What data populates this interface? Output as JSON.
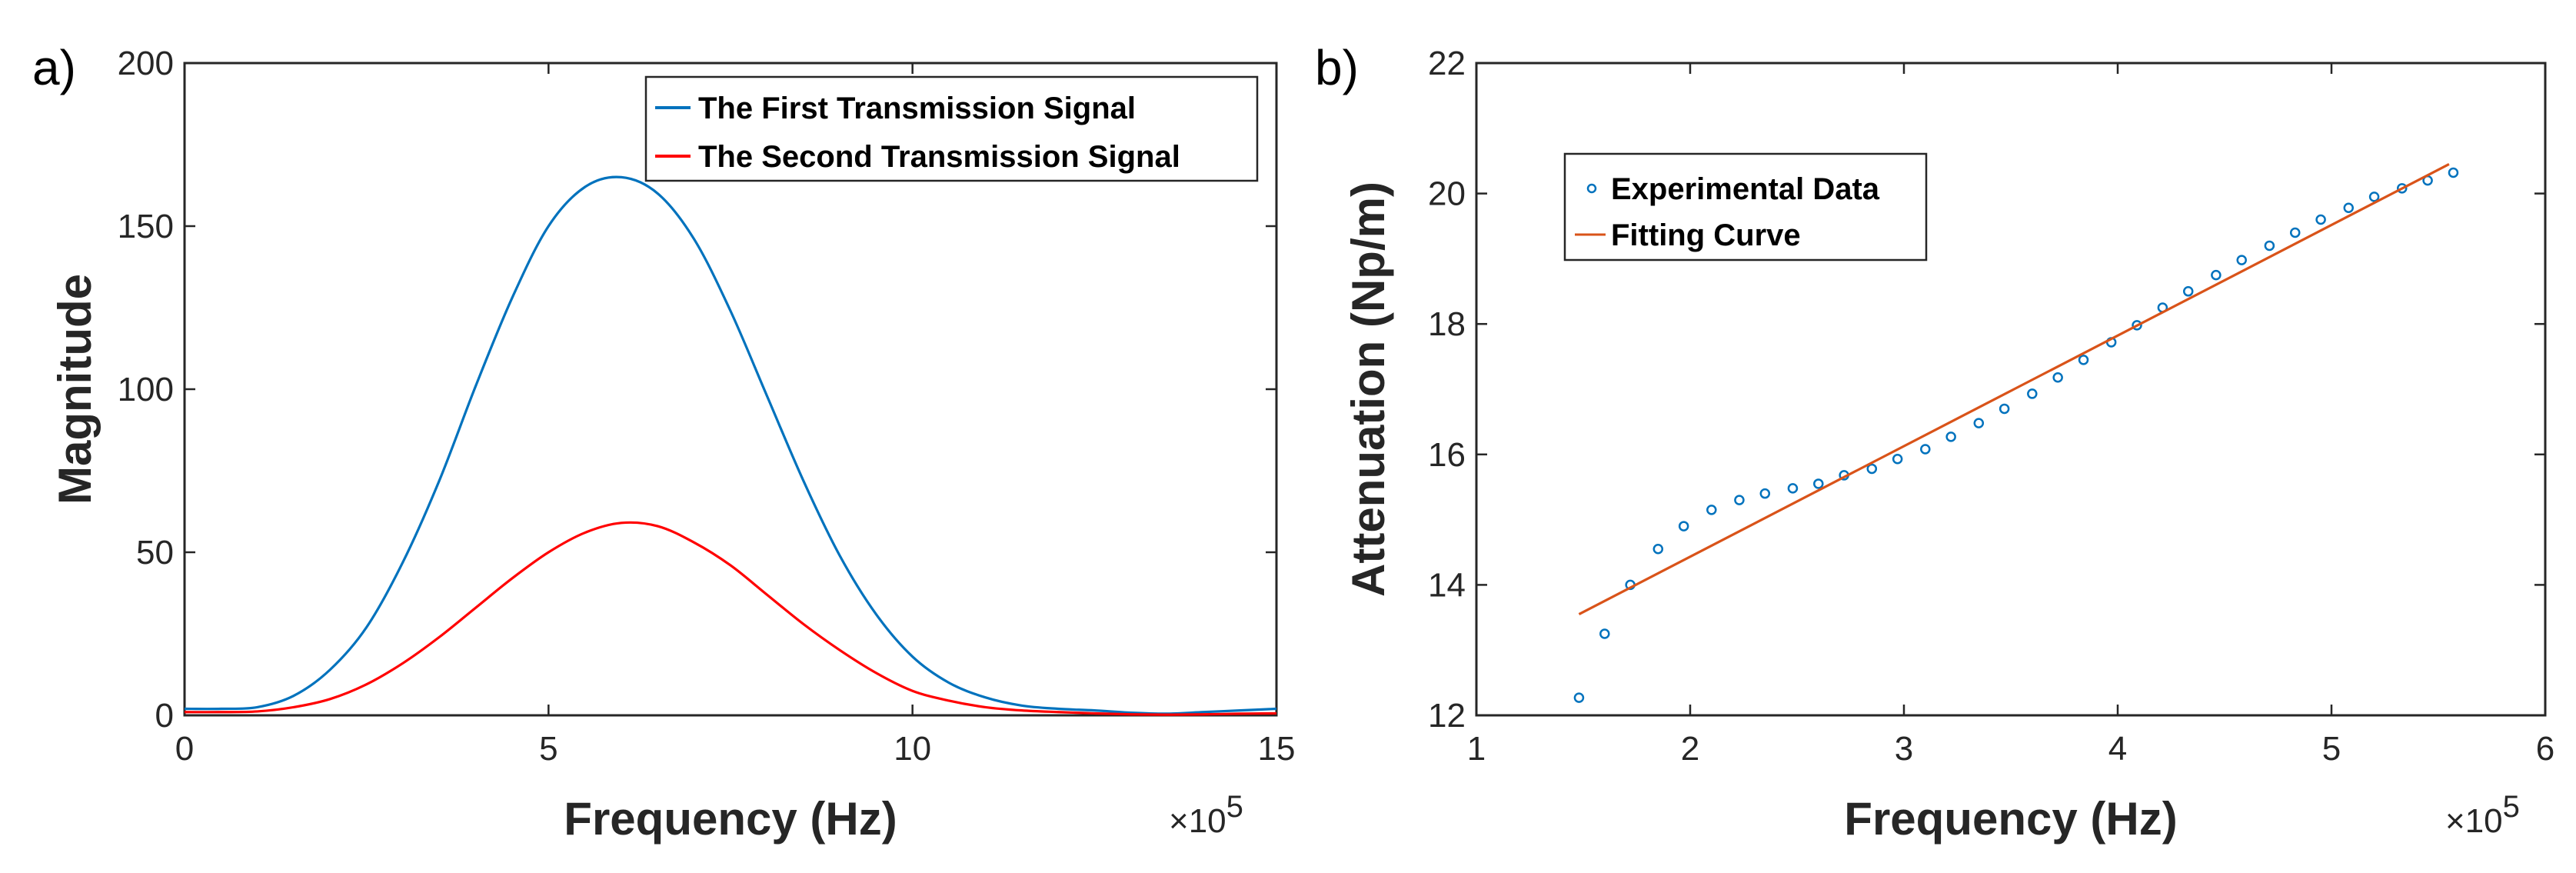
{
  "chart_data": [
    {
      "type": "line",
      "panel_label": "a)",
      "xlabel": "Frequency (Hz)",
      "ylabel": "Magnitude",
      "x_multiplier_label": "×10",
      "x_multiplier_exp": "5",
      "xlim": [
        0,
        15
      ],
      "ylim": [
        0,
        200
      ],
      "xticks": [
        0,
        5,
        10,
        15
      ],
      "yticks": [
        0,
        50,
        100,
        150,
        200
      ],
      "legend_position": "top-right",
      "series": [
        {
          "name": "The First Transmission Signal",
          "color": "#0072BD",
          "x": [
            0,
            0.5,
            1,
            1.5,
            2,
            2.5,
            3,
            3.5,
            4,
            4.5,
            5,
            5.5,
            6,
            6.5,
            7,
            7.5,
            8,
            8.5,
            9,
            9.5,
            10,
            10.5,
            11,
            11.5,
            12,
            12.5,
            13,
            13.5,
            14,
            14.5,
            15
          ],
          "y": [
            2,
            2,
            2.5,
            6,
            14,
            27,
            47,
            72,
            101,
            128,
            150,
            162,
            165,
            160,
            146,
            124,
            98,
            72,
            49,
            31,
            18,
            10,
            5.5,
            3,
            2,
            1.5,
            0.8,
            0.5,
            1,
            1.5,
            2
          ]
        },
        {
          "name": "The Second Transmission Signal",
          "color": "#FF0000",
          "x": [
            0,
            0.5,
            1,
            1.5,
            2,
            2.5,
            3,
            3.5,
            4,
            4.5,
            5,
            5.5,
            6,
            6.5,
            7,
            7.5,
            8,
            8.5,
            9,
            9.5,
            10,
            10.5,
            11,
            11.5,
            12,
            12.5,
            13,
            13.5,
            14,
            14.5,
            15
          ],
          "y": [
            1,
            1,
            1.2,
            2.5,
            5,
            9.5,
            16,
            24,
            33,
            42,
            50,
            56,
            59,
            58,
            53,
            46,
            37,
            28,
            20,
            13,
            7.5,
            4.5,
            2.5,
            1.5,
            1,
            0.6,
            0.3,
            0.2,
            0.3,
            0.5,
            0.6
          ]
        }
      ]
    },
    {
      "type": "scatter",
      "panel_label": "b)",
      "xlabel": "Frequency (Hz)",
      "ylabel": "Attenuation (Np/m)",
      "x_multiplier_label": "×10",
      "x_multiplier_exp": "5",
      "xlim": [
        1,
        6
      ],
      "ylim": [
        12,
        22
      ],
      "xticks": [
        1,
        2,
        3,
        4,
        5,
        6
      ],
      "yticks": [
        12,
        14,
        16,
        18,
        20,
        22
      ],
      "legend_position": "top-left",
      "series": [
        {
          "name": "Experimental Data",
          "kind": "scatter",
          "color": "#0072BD",
          "x": [
            1.48,
            1.6,
            1.72,
            1.85,
            1.97,
            2.1,
            2.23,
            2.35,
            2.48,
            2.6,
            2.72,
            2.85,
            2.97,
            3.1,
            3.22,
            3.35,
            3.47,
            3.6,
            3.72,
            3.84,
            3.97,
            4.09,
            4.21,
            4.33,
            4.46,
            4.58,
            4.71,
            4.83,
            4.95,
            5.08,
            5.2,
            5.33,
            5.45,
            5.57
          ],
          "y": [
            12.27,
            13.25,
            14.0,
            14.55,
            14.9,
            15.15,
            15.3,
            15.4,
            15.48,
            15.55,
            15.68,
            15.78,
            15.93,
            16.08,
            16.27,
            16.48,
            16.7,
            16.93,
            17.18,
            17.45,
            17.72,
            17.98,
            18.25,
            18.5,
            18.75,
            18.98,
            19.2,
            19.4,
            19.6,
            19.78,
            19.95,
            20.08,
            20.2,
            20.32
          ]
        },
        {
          "name": "Fitting Curve",
          "kind": "line",
          "color": "#D95319",
          "x": [
            1.48,
            5.55
          ],
          "y": [
            13.55,
            20.45
          ]
        }
      ]
    }
  ]
}
